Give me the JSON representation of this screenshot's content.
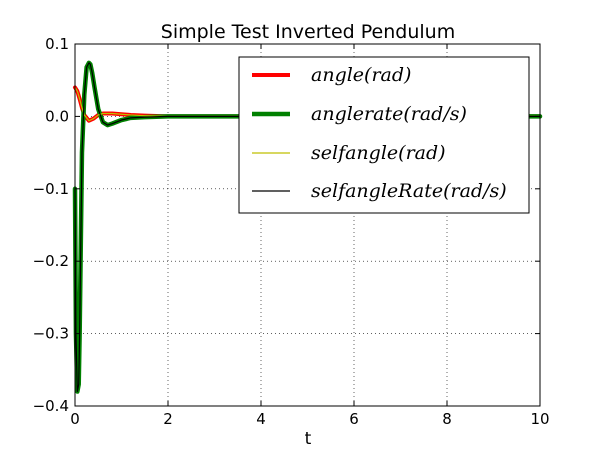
{
  "chart_data": {
    "type": "line",
    "title": "Simple Test Inverted Pendulum",
    "xlabel": "t",
    "ylabel": "",
    "xlim": [
      0,
      10
    ],
    "ylim": [
      -0.4,
      0.1
    ],
    "xticks": [
      0,
      2,
      4,
      6,
      8,
      10
    ],
    "xtick_labels": [
      "0",
      "2",
      "4",
      "6",
      "8",
      "10"
    ],
    "yticks": [
      0.1,
      0.0,
      -0.1,
      -0.2,
      -0.3,
      -0.4
    ],
    "ytick_labels": [
      "0.1",
      "0.0",
      "−0.1",
      "−0.2",
      "−0.3",
      "−0.4"
    ],
    "grid": true,
    "legend_position": "top-right",
    "series": [
      {
        "name": "angle(rad)",
        "color": "#ff0000",
        "x": [
          0,
          0.05,
          0.1,
          0.15,
          0.2,
          0.3,
          0.4,
          0.5,
          0.6,
          0.8,
          1.0,
          1.2,
          1.5,
          2.0,
          3.0,
          5.0,
          10.0
        ],
        "y": [
          0.04,
          0.035,
          0.024,
          0.012,
          0.002,
          -0.006,
          -0.003,
          0.002,
          0.004,
          0.004,
          0.003,
          0.002,
          0.001,
          0.0,
          0.0,
          0.0,
          0.0
        ]
      },
      {
        "name": "anglerate(rad/s)",
        "color": "#008000",
        "x": [
          0,
          0.02,
          0.05,
          0.08,
          0.1,
          0.12,
          0.15,
          0.2,
          0.25,
          0.3,
          0.33,
          0.37,
          0.42,
          0.5,
          0.6,
          0.7,
          0.8,
          1.0,
          1.2,
          1.5,
          2.0,
          3.0,
          5.0,
          10.0
        ],
        "y": [
          -0.1,
          -0.3,
          -0.38,
          -0.37,
          -0.3,
          -0.2,
          -0.05,
          0.03,
          0.068,
          0.074,
          0.072,
          0.06,
          0.04,
          0.01,
          -0.008,
          -0.012,
          -0.01,
          -0.005,
          -0.002,
          -0.001,
          0.0,
          0.0,
          0.0,
          0.0
        ]
      },
      {
        "name": "selfangle(rad)",
        "color": "#bfbf00",
        "x": [
          0,
          0.05,
          0.1,
          0.15,
          0.2,
          0.3,
          0.4,
          0.5,
          0.6,
          0.8,
          1.0,
          1.2,
          1.5,
          2.0,
          3.0,
          5.0,
          10.0
        ],
        "y": [
          0.04,
          0.035,
          0.024,
          0.012,
          0.002,
          -0.006,
          -0.003,
          0.002,
          0.004,
          0.004,
          0.003,
          0.002,
          0.001,
          0.0,
          0.0,
          0.0,
          0.0
        ]
      },
      {
        "name": "selfangleRate(rad/s)",
        "color": "#000000",
        "x": [
          0,
          0.02,
          0.05,
          0.08,
          0.1,
          0.12,
          0.15,
          0.2,
          0.25,
          0.3,
          0.33,
          0.37,
          0.42,
          0.5,
          0.6,
          0.7,
          0.8,
          1.0,
          1.2,
          1.5,
          2.0,
          3.0,
          5.0,
          10.0
        ],
        "y": [
          -0.1,
          -0.3,
          -0.38,
          -0.37,
          -0.3,
          -0.2,
          -0.05,
          0.03,
          0.068,
          0.074,
          0.072,
          0.06,
          0.04,
          0.01,
          -0.008,
          -0.012,
          -0.01,
          -0.005,
          -0.002,
          -0.001,
          0.0,
          0.0,
          0.0,
          0.0
        ]
      }
    ]
  }
}
